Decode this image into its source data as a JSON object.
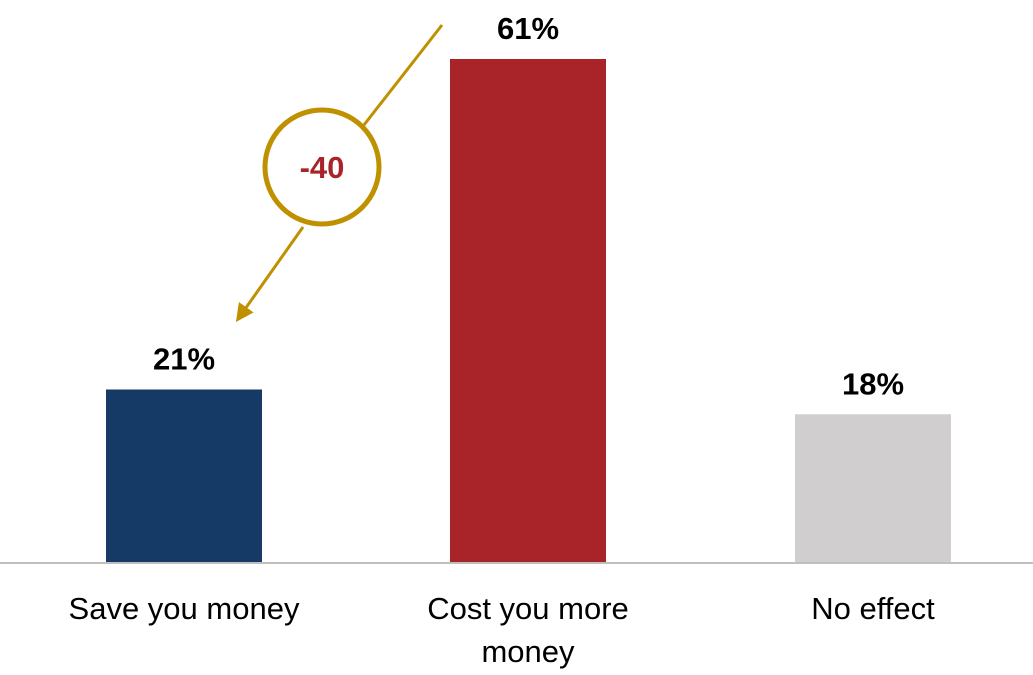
{
  "chart_data": {
    "type": "bar",
    "categories": [
      "Save you money",
      "Cost you more money",
      "No effect"
    ],
    "category_lines": [
      [
        "Save you money"
      ],
      [
        "Cost you more",
        "money"
      ],
      [
        "No effect"
      ]
    ],
    "values": [
      21,
      61,
      18
    ],
    "value_labels": [
      "21%",
      "61%",
      "18%"
    ],
    "title": "",
    "xlabel": "",
    "ylabel": "",
    "ylim": [
      0,
      61
    ],
    "grid": false,
    "legend": "none",
    "bar_colors": [
      "#163a66",
      "#a82428",
      "#d0cece"
    ],
    "baseline_color": "#bfbfbf",
    "callout": {
      "text": "-40",
      "from_category": "Cost you more money",
      "to_category": "Save you money",
      "ring_color": "#bf9000",
      "text_color": "#a82428"
    }
  }
}
